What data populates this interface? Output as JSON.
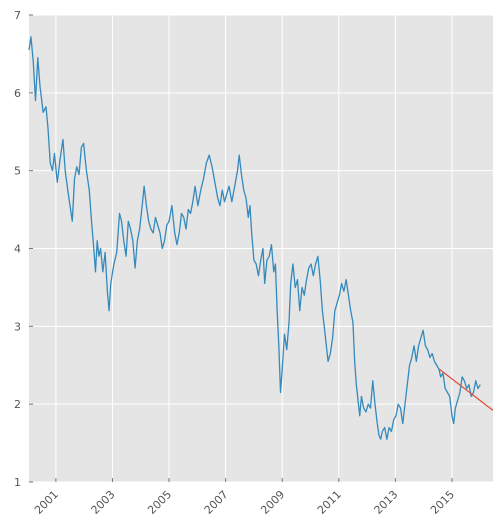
{
  "chart_data": {
    "type": "line",
    "title": "",
    "xlabel": "",
    "ylabel": "",
    "xlim": [
      2000.05,
      2016.45
    ],
    "ylim": [
      1,
      7
    ],
    "grid": true,
    "x_ticks": [
      2001,
      2003,
      2005,
      2007,
      2009,
      2011,
      2013,
      2015
    ],
    "x_tick_labels": [
      "2001",
      "2003",
      "2005",
      "2007",
      "2009",
      "2011",
      "2013",
      "2015"
    ],
    "y_ticks": [
      1,
      2,
      3,
      4,
      5,
      6,
      7
    ],
    "y_tick_labels": [
      "1",
      "2",
      "3",
      "4",
      "5",
      "6",
      "7"
    ],
    "colors": {
      "background": "#e5e5e5",
      "grid": "#ffffff",
      "series": "#348abd",
      "trend": "#e24a33"
    },
    "series": [
      {
        "color": "#348abd",
        "points": [
          [
            2000.05,
            6.55
          ],
          [
            2000.12,
            6.72
          ],
          [
            2000.2,
            6.4
          ],
          [
            2000.28,
            5.9
          ],
          [
            2000.36,
            6.45
          ],
          [
            2000.44,
            6.08
          ],
          [
            2000.55,
            5.75
          ],
          [
            2000.65,
            5.82
          ],
          [
            2000.72,
            5.55
          ],
          [
            2000.8,
            5.1
          ],
          [
            2000.88,
            5.0
          ],
          [
            2000.95,
            5.22
          ],
          [
            2001.05,
            4.85
          ],
          [
            2001.15,
            5.15
          ],
          [
            2001.25,
            5.4
          ],
          [
            2001.33,
            5.0
          ],
          [
            2001.42,
            4.75
          ],
          [
            2001.5,
            4.55
          ],
          [
            2001.58,
            4.35
          ],
          [
            2001.66,
            4.9
          ],
          [
            2001.74,
            5.05
          ],
          [
            2001.82,
            4.95
          ],
          [
            2001.9,
            5.3
          ],
          [
            2001.98,
            5.35
          ],
          [
            2002.08,
            5.0
          ],
          [
            2002.18,
            4.75
          ],
          [
            2002.26,
            4.35
          ],
          [
            2002.34,
            4.0
          ],
          [
            2002.4,
            3.7
          ],
          [
            2002.46,
            4.1
          ],
          [
            2002.52,
            3.9
          ],
          [
            2002.58,
            4.0
          ],
          [
            2002.66,
            3.7
          ],
          [
            2002.74,
            3.95
          ],
          [
            2002.82,
            3.45
          ],
          [
            2002.88,
            3.2
          ],
          [
            2002.94,
            3.55
          ],
          [
            2003.05,
            3.8
          ],
          [
            2003.15,
            3.95
          ],
          [
            2003.25,
            4.45
          ],
          [
            2003.32,
            4.35
          ],
          [
            2003.4,
            4.1
          ],
          [
            2003.48,
            3.9
          ],
          [
            2003.56,
            4.35
          ],
          [
            2003.64,
            4.25
          ],
          [
            2003.72,
            4.1
          ],
          [
            2003.8,
            3.75
          ],
          [
            2003.88,
            4.1
          ],
          [
            2003.96,
            4.25
          ],
          [
            2004.05,
            4.55
          ],
          [
            2004.12,
            4.8
          ],
          [
            2004.2,
            4.55
          ],
          [
            2004.28,
            4.35
          ],
          [
            2004.36,
            4.25
          ],
          [
            2004.44,
            4.2
          ],
          [
            2004.52,
            4.4
          ],
          [
            2004.6,
            4.3
          ],
          [
            2004.68,
            4.2
          ],
          [
            2004.76,
            4.0
          ],
          [
            2004.84,
            4.1
          ],
          [
            2004.92,
            4.3
          ],
          [
            2005.0,
            4.35
          ],
          [
            2005.1,
            4.55
          ],
          [
            2005.2,
            4.2
          ],
          [
            2005.28,
            4.05
          ],
          [
            2005.36,
            4.2
          ],
          [
            2005.44,
            4.45
          ],
          [
            2005.52,
            4.4
          ],
          [
            2005.6,
            4.25
          ],
          [
            2005.68,
            4.5
          ],
          [
            2005.76,
            4.45
          ],
          [
            2005.84,
            4.6
          ],
          [
            2005.92,
            4.8
          ],
          [
            2006.02,
            4.55
          ],
          [
            2006.12,
            4.75
          ],
          [
            2006.22,
            4.9
          ],
          [
            2006.32,
            5.1
          ],
          [
            2006.42,
            5.2
          ],
          [
            2006.52,
            5.05
          ],
          [
            2006.62,
            4.85
          ],
          [
            2006.72,
            4.65
          ],
          [
            2006.8,
            4.55
          ],
          [
            2006.88,
            4.75
          ],
          [
            2006.96,
            4.6
          ],
          [
            2007.04,
            4.7
          ],
          [
            2007.12,
            4.8
          ],
          [
            2007.22,
            4.6
          ],
          [
            2007.32,
            4.8
          ],
          [
            2007.42,
            5.0
          ],
          [
            2007.48,
            5.2
          ],
          [
            2007.56,
            4.95
          ],
          [
            2007.64,
            4.75
          ],
          [
            2007.72,
            4.65
          ],
          [
            2007.8,
            4.4
          ],
          [
            2007.86,
            4.55
          ],
          [
            2007.92,
            4.2
          ],
          [
            2008.0,
            3.85
          ],
          [
            2008.08,
            3.8
          ],
          [
            2008.16,
            3.65
          ],
          [
            2008.24,
            3.85
          ],
          [
            2008.32,
            4.0
          ],
          [
            2008.38,
            3.55
          ],
          [
            2008.46,
            3.85
          ],
          [
            2008.54,
            3.9
          ],
          [
            2008.62,
            4.05
          ],
          [
            2008.7,
            3.7
          ],
          [
            2008.76,
            3.8
          ],
          [
            2008.82,
            3.2
          ],
          [
            2008.88,
            2.75
          ],
          [
            2008.94,
            2.15
          ],
          [
            2009.0,
            2.45
          ],
          [
            2009.08,
            2.9
          ],
          [
            2009.16,
            2.7
          ],
          [
            2009.24,
            3.05
          ],
          [
            2009.3,
            3.55
          ],
          [
            2009.38,
            3.8
          ],
          [
            2009.46,
            3.5
          ],
          [
            2009.54,
            3.6
          ],
          [
            2009.62,
            3.2
          ],
          [
            2009.7,
            3.5
          ],
          [
            2009.78,
            3.4
          ],
          [
            2009.86,
            3.6
          ],
          [
            2009.94,
            3.75
          ],
          [
            2010.02,
            3.8
          ],
          [
            2010.1,
            3.65
          ],
          [
            2010.18,
            3.8
          ],
          [
            2010.26,
            3.9
          ],
          [
            2010.34,
            3.6
          ],
          [
            2010.42,
            3.2
          ],
          [
            2010.5,
            2.95
          ],
          [
            2010.56,
            2.75
          ],
          [
            2010.62,
            2.55
          ],
          [
            2010.7,
            2.65
          ],
          [
            2010.78,
            2.85
          ],
          [
            2010.86,
            3.2
          ],
          [
            2010.94,
            3.3
          ],
          [
            2011.02,
            3.4
          ],
          [
            2011.1,
            3.55
          ],
          [
            2011.18,
            3.45
          ],
          [
            2011.26,
            3.6
          ],
          [
            2011.34,
            3.4
          ],
          [
            2011.42,
            3.2
          ],
          [
            2011.5,
            3.05
          ],
          [
            2011.56,
            2.55
          ],
          [
            2011.62,
            2.25
          ],
          [
            2011.68,
            2.05
          ],
          [
            2011.74,
            1.85
          ],
          [
            2011.8,
            2.1
          ],
          [
            2011.88,
            1.95
          ],
          [
            2011.96,
            1.9
          ],
          [
            2012.04,
            2.0
          ],
          [
            2012.12,
            1.95
          ],
          [
            2012.2,
            2.3
          ],
          [
            2012.28,
            2.0
          ],
          [
            2012.36,
            1.75
          ],
          [
            2012.42,
            1.6
          ],
          [
            2012.48,
            1.55
          ],
          [
            2012.54,
            1.65
          ],
          [
            2012.62,
            1.7
          ],
          [
            2012.7,
            1.55
          ],
          [
            2012.78,
            1.7
          ],
          [
            2012.86,
            1.65
          ],
          [
            2012.94,
            1.8
          ],
          [
            2013.02,
            1.85
          ],
          [
            2013.1,
            2.0
          ],
          [
            2013.18,
            1.95
          ],
          [
            2013.26,
            1.75
          ],
          [
            2013.34,
            2.0
          ],
          [
            2013.42,
            2.25
          ],
          [
            2013.5,
            2.5
          ],
          [
            2013.58,
            2.6
          ],
          [
            2013.66,
            2.75
          ],
          [
            2013.74,
            2.55
          ],
          [
            2013.82,
            2.75
          ],
          [
            2013.9,
            2.85
          ],
          [
            2013.98,
            2.95
          ],
          [
            2014.06,
            2.75
          ],
          [
            2014.14,
            2.7
          ],
          [
            2014.22,
            2.6
          ],
          [
            2014.3,
            2.65
          ],
          [
            2014.38,
            2.55
          ],
          [
            2014.46,
            2.5
          ],
          [
            2014.54,
            2.45
          ],
          [
            2014.6,
            2.35
          ],
          [
            2014.68,
            2.4
          ],
          [
            2014.76,
            2.2
          ],
          [
            2014.84,
            2.15
          ],
          [
            2014.92,
            2.1
          ],
          [
            2015.0,
            1.85
          ],
          [
            2015.06,
            1.75
          ],
          [
            2015.12,
            1.95
          ],
          [
            2015.2,
            2.05
          ],
          [
            2015.28,
            2.15
          ],
          [
            2015.36,
            2.35
          ],
          [
            2015.44,
            2.3
          ],
          [
            2015.52,
            2.2
          ],
          [
            2015.6,
            2.25
          ],
          [
            2015.68,
            2.1
          ],
          [
            2015.76,
            2.15
          ],
          [
            2015.84,
            2.3
          ],
          [
            2015.92,
            2.2
          ],
          [
            2016.0,
            2.25
          ]
        ]
      },
      {
        "color": "#e24a33",
        "points": [
          [
            2014.55,
            2.45
          ],
          [
            2016.45,
            1.92
          ]
        ]
      }
    ]
  }
}
